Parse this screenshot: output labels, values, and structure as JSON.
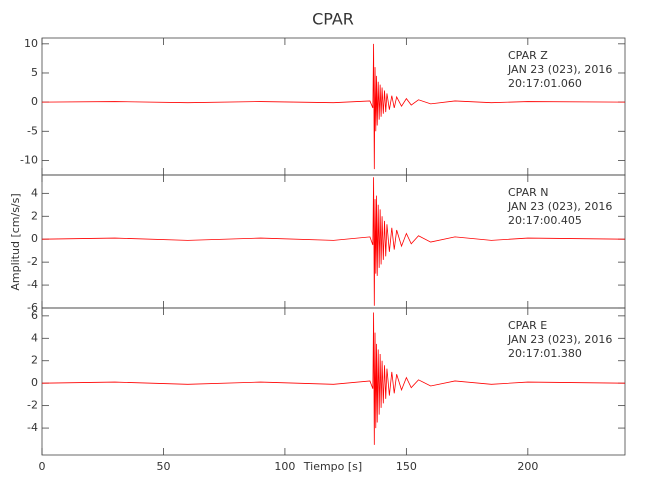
{
  "chart_data": [
    {
      "type": "line",
      "title": "CPAR",
      "annotation": [
        "CPAR   Z",
        "JAN 23 (023), 2016",
        "20:17:01.060"
      ],
      "x": [
        0,
        30,
        60,
        90,
        120,
        135,
        136.2,
        136.5,
        136.8,
        137.1,
        137.4,
        137.7,
        138,
        138.4,
        138.8,
        139.2,
        139.6,
        140,
        140.5,
        141,
        141.5,
        142,
        143,
        144,
        145,
        146,
        148,
        150,
        152,
        155,
        160,
        170,
        185,
        200,
        240
      ],
      "series": [
        {
          "name": "Z",
          "color": "#ff0000",
          "values": [
            0,
            0.1,
            -0.1,
            0.1,
            -0.1,
            0.2,
            -1,
            10,
            -11.5,
            6,
            -5,
            4.5,
            -4,
            3.5,
            -3,
            3,
            -2.5,
            2.5,
            -2,
            2,
            -1.7,
            1.5,
            -1.3,
            1.1,
            -1,
            0.9,
            -0.7,
            0.6,
            -0.5,
            0.4,
            -0.3,
            0.2,
            -0.1,
            0.1,
            0
          ]
        }
      ],
      "ylim": [
        -12.5,
        11
      ],
      "yticks": [
        -10,
        -5,
        0,
        5,
        10
      ]
    },
    {
      "type": "line",
      "ylabel": "Amplitud [cm/s/s]",
      "annotation": [
        "CPAR   N",
        "JAN 23 (023), 2016",
        "20:17:00.405"
      ],
      "x": [
        0,
        30,
        60,
        90,
        120,
        135,
        136.2,
        136.5,
        136.8,
        137.1,
        137.4,
        137.7,
        138,
        138.4,
        138.8,
        139.2,
        139.6,
        140,
        140.5,
        141,
        141.5,
        142,
        143,
        144,
        145,
        146,
        148,
        150,
        152,
        155,
        160,
        170,
        185,
        200,
        240
      ],
      "series": [
        {
          "name": "N",
          "color": "#ff0000",
          "values": [
            0,
            0.1,
            -0.1,
            0.1,
            -0.1,
            0.2,
            -0.5,
            5.4,
            -5.8,
            3.5,
            -3,
            3.8,
            -3.2,
            3,
            -2.5,
            2.6,
            -2.2,
            2,
            -1.8,
            1.6,
            -1.5,
            1.3,
            -1.1,
            1,
            -0.9,
            0.8,
            -0.6,
            0.5,
            -0.4,
            0.3,
            -0.25,
            0.2,
            -0.1,
            0.1,
            0
          ]
        }
      ],
      "ylim": [
        -6,
        5.6
      ],
      "yticks": [
        -6,
        -4,
        -2,
        0,
        2,
        4
      ]
    },
    {
      "type": "line",
      "xlabel": "Tiempo [s]",
      "annotation": [
        "CPAR   E",
        "JAN 23 (023), 2016",
        "20:17:01.380"
      ],
      "x": [
        0,
        30,
        60,
        90,
        120,
        135,
        136.2,
        136.5,
        136.8,
        137.1,
        137.4,
        137.7,
        138,
        138.4,
        138.8,
        139.2,
        139.6,
        140,
        140.5,
        141,
        141.5,
        142,
        143,
        144,
        145,
        146,
        148,
        150,
        152,
        155,
        160,
        170,
        185,
        200,
        240
      ],
      "series": [
        {
          "name": "E",
          "color": "#ff0000",
          "values": [
            0,
            0.1,
            -0.1,
            0.1,
            -0.1,
            0.2,
            -0.5,
            6.3,
            -5.5,
            4.5,
            -4,
            3.5,
            -3.5,
            3,
            -2.8,
            2.6,
            -2.2,
            2,
            -1.8,
            1.6,
            -1.4,
            1.3,
            -1.1,
            1,
            -0.9,
            0.8,
            -0.6,
            0.5,
            -0.4,
            0.3,
            -0.25,
            0.2,
            -0.1,
            0.1,
            0
          ]
        }
      ],
      "ylim": [
        -6.4,
        6.7
      ],
      "yticks": [
        -4,
        -2,
        0,
        2,
        4,
        6
      ],
      "xlim": [
        0,
        240
      ],
      "xticks": [
        0,
        50,
        100,
        150,
        200
      ]
    }
  ]
}
